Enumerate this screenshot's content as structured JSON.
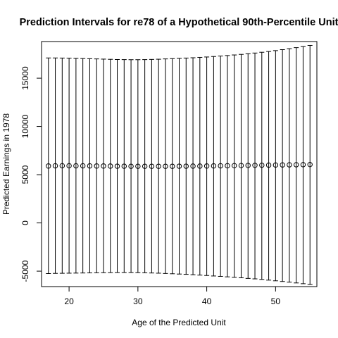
{
  "chart_data": {
    "type": "scatter",
    "title": "Prediction Intervals for re78 of a Hypothetical 90th-Percentile Unit",
    "xlabel": "Age of the Predicted Unit",
    "ylabel": "Predicted Earnings in 1978",
    "xlim": [
      16,
      56
    ],
    "ylim": [
      -6600,
      18800
    ],
    "x_ticks": [
      20,
      30,
      40,
      50
    ],
    "y_ticks": [
      -5000,
      0,
      5000,
      10000,
      15000
    ],
    "grid": false,
    "legend": "none",
    "series": [
      {
        "x": [
          17,
          18,
          19,
          20,
          21,
          22,
          23,
          24,
          25,
          26,
          27,
          28,
          29,
          30,
          31,
          32,
          33,
          34,
          35,
          36,
          37,
          38,
          39,
          40,
          41,
          42,
          43,
          44,
          45,
          46,
          47,
          48,
          49,
          50,
          51,
          52,
          53,
          54,
          55
        ],
        "point": [
          5900,
          5920,
          5930,
          5930,
          5920,
          5920,
          5910,
          5900,
          5900,
          5890,
          5880,
          5880,
          5870,
          5870,
          5870,
          5870,
          5870,
          5870,
          5870,
          5880,
          5880,
          5890,
          5890,
          5900,
          5910,
          5920,
          5930,
          5940,
          5950,
          5960,
          5970,
          5980,
          5990,
          6000,
          6010,
          6020,
          6030,
          6040,
          6050
        ],
        "lower": [
          -5250,
          -5230,
          -5220,
          -5210,
          -5200,
          -5190,
          -5180,
          -5170,
          -5160,
          -5150,
          -5140,
          -5140,
          -5140,
          -5150,
          -5170,
          -5190,
          -5210,
          -5240,
          -5270,
          -5300,
          -5330,
          -5370,
          -5410,
          -5450,
          -5500,
          -5540,
          -5590,
          -5640,
          -5690,
          -5750,
          -5800,
          -5860,
          -5930,
          -6000,
          -6070,
          -6140,
          -6220,
          -6300,
          -6380
        ],
        "upper": [
          17100,
          17100,
          17090,
          17080,
          17060,
          17040,
          17020,
          17000,
          16980,
          16960,
          16940,
          16930,
          16920,
          16920,
          16930,
          16950,
          16970,
          17000,
          17030,
          17060,
          17090,
          17120,
          17160,
          17200,
          17250,
          17300,
          17350,
          17410,
          17470,
          17540,
          17610,
          17690,
          17770,
          17860,
          17960,
          18060,
          18170,
          18280,
          18400
        ]
      }
    ]
  }
}
